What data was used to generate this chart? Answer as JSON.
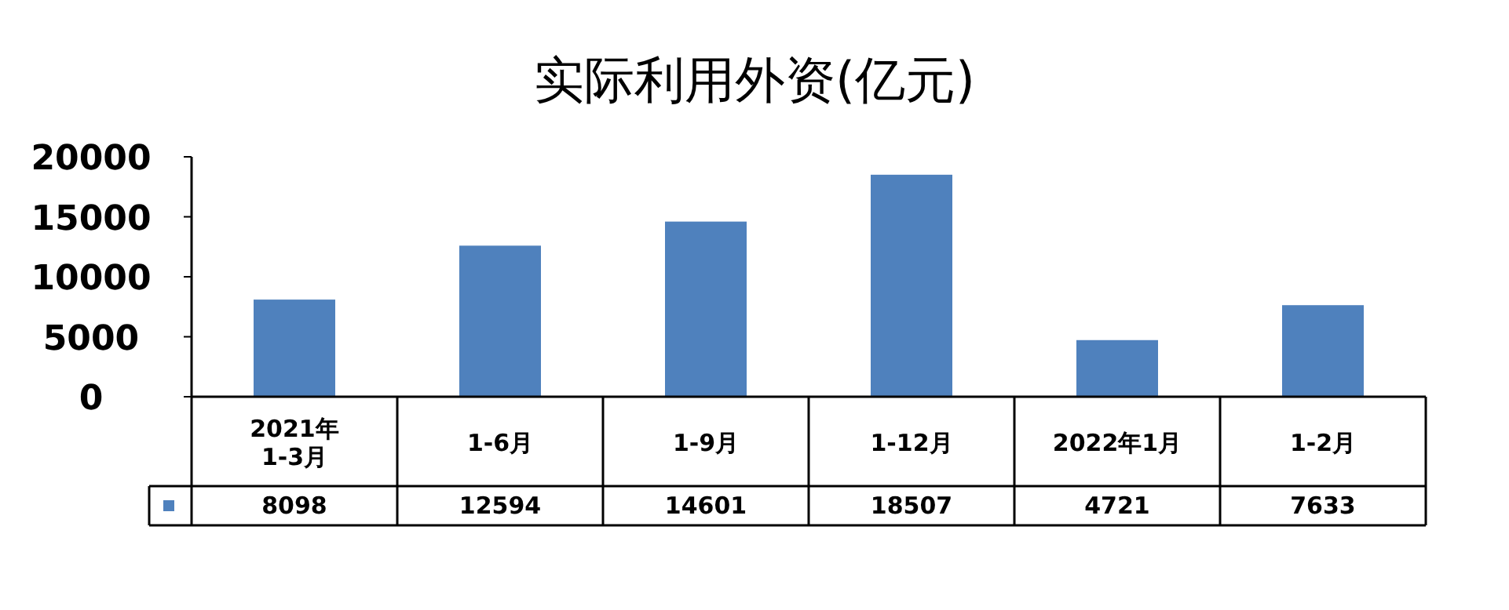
{
  "chart_data": {
    "type": "bar",
    "title": "实际利用外资(亿元)",
    "categories": [
      "2021年\n1-3月",
      "1-6月",
      "1-9月",
      "1-12月",
      "2022年1月",
      "1-2月"
    ],
    "values": [
      8098,
      12594,
      14601,
      18507,
      4721,
      7633
    ],
    "color": "#4f81bd",
    "ylim": [
      0,
      20000
    ],
    "yticks": [
      0,
      5000,
      10000,
      15000,
      20000
    ],
    "data_labels": true,
    "grid": false
  }
}
